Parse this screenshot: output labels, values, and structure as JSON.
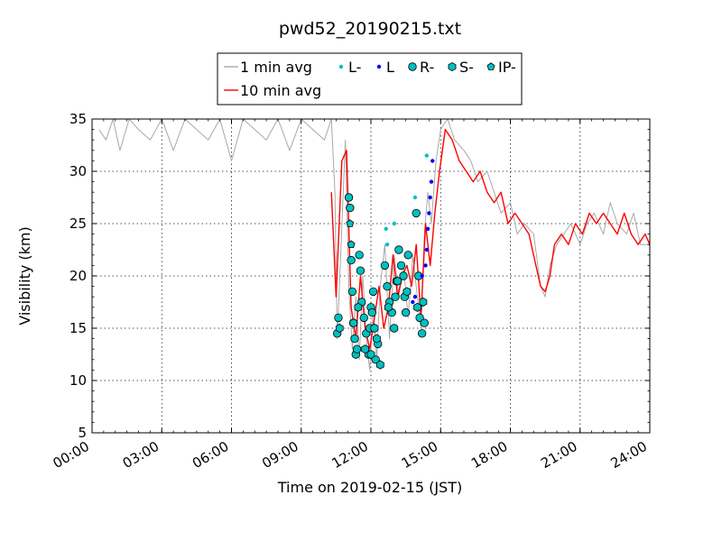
{
  "chart_data": {
    "type": "line",
    "title": "pwd52_20190215.txt",
    "xlabel": "Time on 2019-02-15 (JST)",
    "ylabel": "Visibility (km)",
    "xlim": [
      0,
      24
    ],
    "ylim": [
      5,
      35
    ],
    "x_ticks": [
      {
        "value": 0,
        "label": "00:00"
      },
      {
        "value": 3,
        "label": "03:00"
      },
      {
        "value": 6,
        "label": "06:00"
      },
      {
        "value": 9,
        "label": "09:00"
      },
      {
        "value": 12,
        "label": "12:00"
      },
      {
        "value": 15,
        "label": "15:00"
      },
      {
        "value": 18,
        "label": "18:00"
      },
      {
        "value": 21,
        "label": "21:00"
      },
      {
        "value": 24,
        "label": "24:00"
      }
    ],
    "y_ticks": [
      {
        "value": 5,
        "label": "5"
      },
      {
        "value": 10,
        "label": "10"
      },
      {
        "value": 15,
        "label": "15"
      },
      {
        "value": 20,
        "label": "20"
      },
      {
        "value": 25,
        "label": "25"
      },
      {
        "value": 30,
        "label": "30"
      },
      {
        "value": 35,
        "label": "35"
      }
    ],
    "grid": true,
    "legend_position": "top-center",
    "legend": [
      {
        "label": "1 min avg",
        "marker": "line",
        "color": "#a8a8a8"
      },
      {
        "label": "L-",
        "marker": "dot",
        "color": "#00c0c0"
      },
      {
        "label": "L",
        "marker": "dot",
        "color": "#0000ff"
      },
      {
        "label": "R-",
        "marker": "circle",
        "color": "#00c0c0"
      },
      {
        "label": "S-",
        "marker": "hexagon",
        "color": "#00c0c0"
      },
      {
        "label": "IP-",
        "marker": "pentagon",
        "color": "#00c0c0"
      },
      {
        "label": "10 min avg",
        "marker": "line",
        "color": "#ff0000"
      }
    ],
    "series": [
      {
        "name": "1 min avg",
        "color": "#a8a8a8",
        "x": [
          0.3,
          0.6,
          0.9,
          1.2,
          1.6,
          2.0,
          2.5,
          3.0,
          3.5,
          4.0,
          4.5,
          5.0,
          5.5,
          6.0,
          6.5,
          7.0,
          7.5,
          8.0,
          8.5,
          9.0,
          9.5,
          10.0,
          10.3,
          10.45,
          10.55,
          10.7,
          10.9,
          11.05,
          11.2,
          11.35,
          11.5,
          11.65,
          11.8,
          11.95,
          12.1,
          12.25,
          12.4,
          12.6,
          12.8,
          13.0,
          13.2,
          13.4,
          13.6,
          13.8,
          14.0,
          14.15,
          14.3,
          14.45,
          14.6,
          14.8,
          15.0,
          15.3,
          15.6,
          16.0,
          16.3,
          16.6,
          17.0,
          17.3,
          17.6,
          18.0,
          18.3,
          18.6,
          19.0,
          19.3,
          19.5,
          19.7,
          20.0,
          20.3,
          20.6,
          21.0,
          21.3,
          21.6,
          22.0,
          22.3,
          22.6,
          23.0,
          23.3,
          23.6,
          24.0
        ],
        "values": [
          34,
          33,
          35,
          32,
          35,
          34,
          33,
          35,
          32,
          35,
          34,
          33,
          35,
          31,
          35,
          34,
          33,
          35,
          32,
          35,
          34,
          33,
          35,
          28,
          14,
          22,
          33,
          19,
          13,
          18,
          12,
          20,
          14,
          11,
          17,
          12,
          19,
          23,
          14,
          22,
          18,
          21,
          16,
          22,
          18,
          15,
          24,
          28,
          25,
          31,
          34,
          35,
          33,
          32,
          31,
          29,
          30,
          28,
          26,
          27,
          24,
          25,
          24,
          19,
          18,
          21,
          23,
          24,
          25,
          23,
          25,
          26,
          24,
          27,
          25,
          24,
          26,
          23,
          23
        ]
      },
      {
        "name": "10 min avg",
        "color": "#ff0000",
        "x": [
          10.3,
          10.5,
          10.75,
          10.95,
          11.15,
          11.35,
          11.55,
          11.75,
          11.95,
          12.15,
          12.35,
          12.55,
          12.75,
          12.95,
          13.15,
          13.35,
          13.55,
          13.75,
          13.95,
          14.15,
          14.35,
          14.55,
          14.75,
          14.95,
          15.2,
          15.5,
          15.8,
          16.1,
          16.4,
          16.7,
          17.0,
          17.3,
          17.6,
          17.9,
          18.2,
          18.5,
          18.8,
          19.1,
          19.3,
          19.5,
          19.7,
          19.9,
          20.2,
          20.5,
          20.8,
          21.1,
          21.4,
          21.7,
          22.0,
          22.3,
          22.6,
          22.9,
          23.2,
          23.5,
          23.8,
          24.0
        ],
        "values": [
          28,
          18,
          31,
          32,
          17,
          14,
          20,
          15,
          13,
          16,
          19,
          15,
          17,
          22,
          18,
          20,
          21,
          19,
          23,
          16,
          25,
          21,
          26,
          30,
          34,
          33,
          31,
          30,
          29,
          30,
          28,
          27,
          28,
          25,
          26,
          25,
          24,
          21,
          19,
          18.5,
          20,
          23,
          24,
          23,
          25,
          24,
          26,
          25,
          26,
          25,
          24,
          26,
          24,
          23,
          24,
          23
        ]
      }
    ],
    "markers": [
      {
        "name": "R-",
        "shape": "circle",
        "color": "#00c0c0",
        "x": [
          10.55,
          10.6,
          11.05,
          11.1,
          11.15,
          11.2,
          11.25,
          11.3,
          11.35,
          11.4,
          11.5,
          11.55,
          11.6,
          11.7,
          11.8,
          11.9,
          11.95,
          12.0,
          12.05,
          12.1,
          12.15,
          12.2,
          12.3,
          12.6,
          12.7,
          12.8,
          12.9,
          13.0,
          13.05,
          13.1,
          13.2,
          13.3,
          13.4,
          13.45,
          13.5,
          13.6,
          13.95,
          14.05,
          14.1,
          14.2,
          14.3
        ],
        "values": [
          14.5,
          16,
          27.5,
          26.5,
          21.5,
          18.5,
          15.5,
          14,
          12.5,
          13,
          22,
          20.5,
          17.5,
          16,
          14.5,
          12.5,
          15,
          17,
          16.5,
          18.5,
          15,
          12,
          13.5,
          21,
          19,
          17.5,
          16.5,
          15,
          18,
          19.5,
          22.5,
          21,
          20,
          18,
          16.5,
          22,
          26,
          20,
          16,
          14.5,
          15.5
        ]
      },
      {
        "name": "S-",
        "shape": "hexagon",
        "color": "#00c0c0",
        "x": [
          10.65,
          11.25,
          11.45,
          11.75,
          12.0,
          12.25,
          12.4,
          12.75,
          13.15,
          13.55,
          14.0,
          14.25
        ],
        "values": [
          15,
          15.5,
          17,
          13,
          12.5,
          14,
          11.5,
          17,
          19.5,
          18.5,
          17,
          17.5
        ]
      },
      {
        "name": "IP-",
        "shape": "pentagon",
        "color": "#00c0c0",
        "x": [
          11.1,
          11.15
        ],
        "values": [
          25,
          23
        ]
      },
      {
        "name": "L-",
        "shape": "dot",
        "color": "#00c0c0",
        "x": [
          12.65,
          12.7,
          13.0,
          13.25,
          13.9,
          14.4
        ],
        "values": [
          24.5,
          23,
          25,
          21,
          27.5,
          31.5
        ]
      },
      {
        "name": "L",
        "shape": "dot",
        "color": "#0000ff",
        "x": [
          13.8,
          13.9,
          14.2,
          14.35,
          14.4,
          14.45,
          14.5,
          14.55,
          14.6,
          14.65
        ],
        "values": [
          17.5,
          18,
          20,
          21,
          22.5,
          24.5,
          26,
          27.5,
          29,
          31
        ]
      }
    ]
  }
}
